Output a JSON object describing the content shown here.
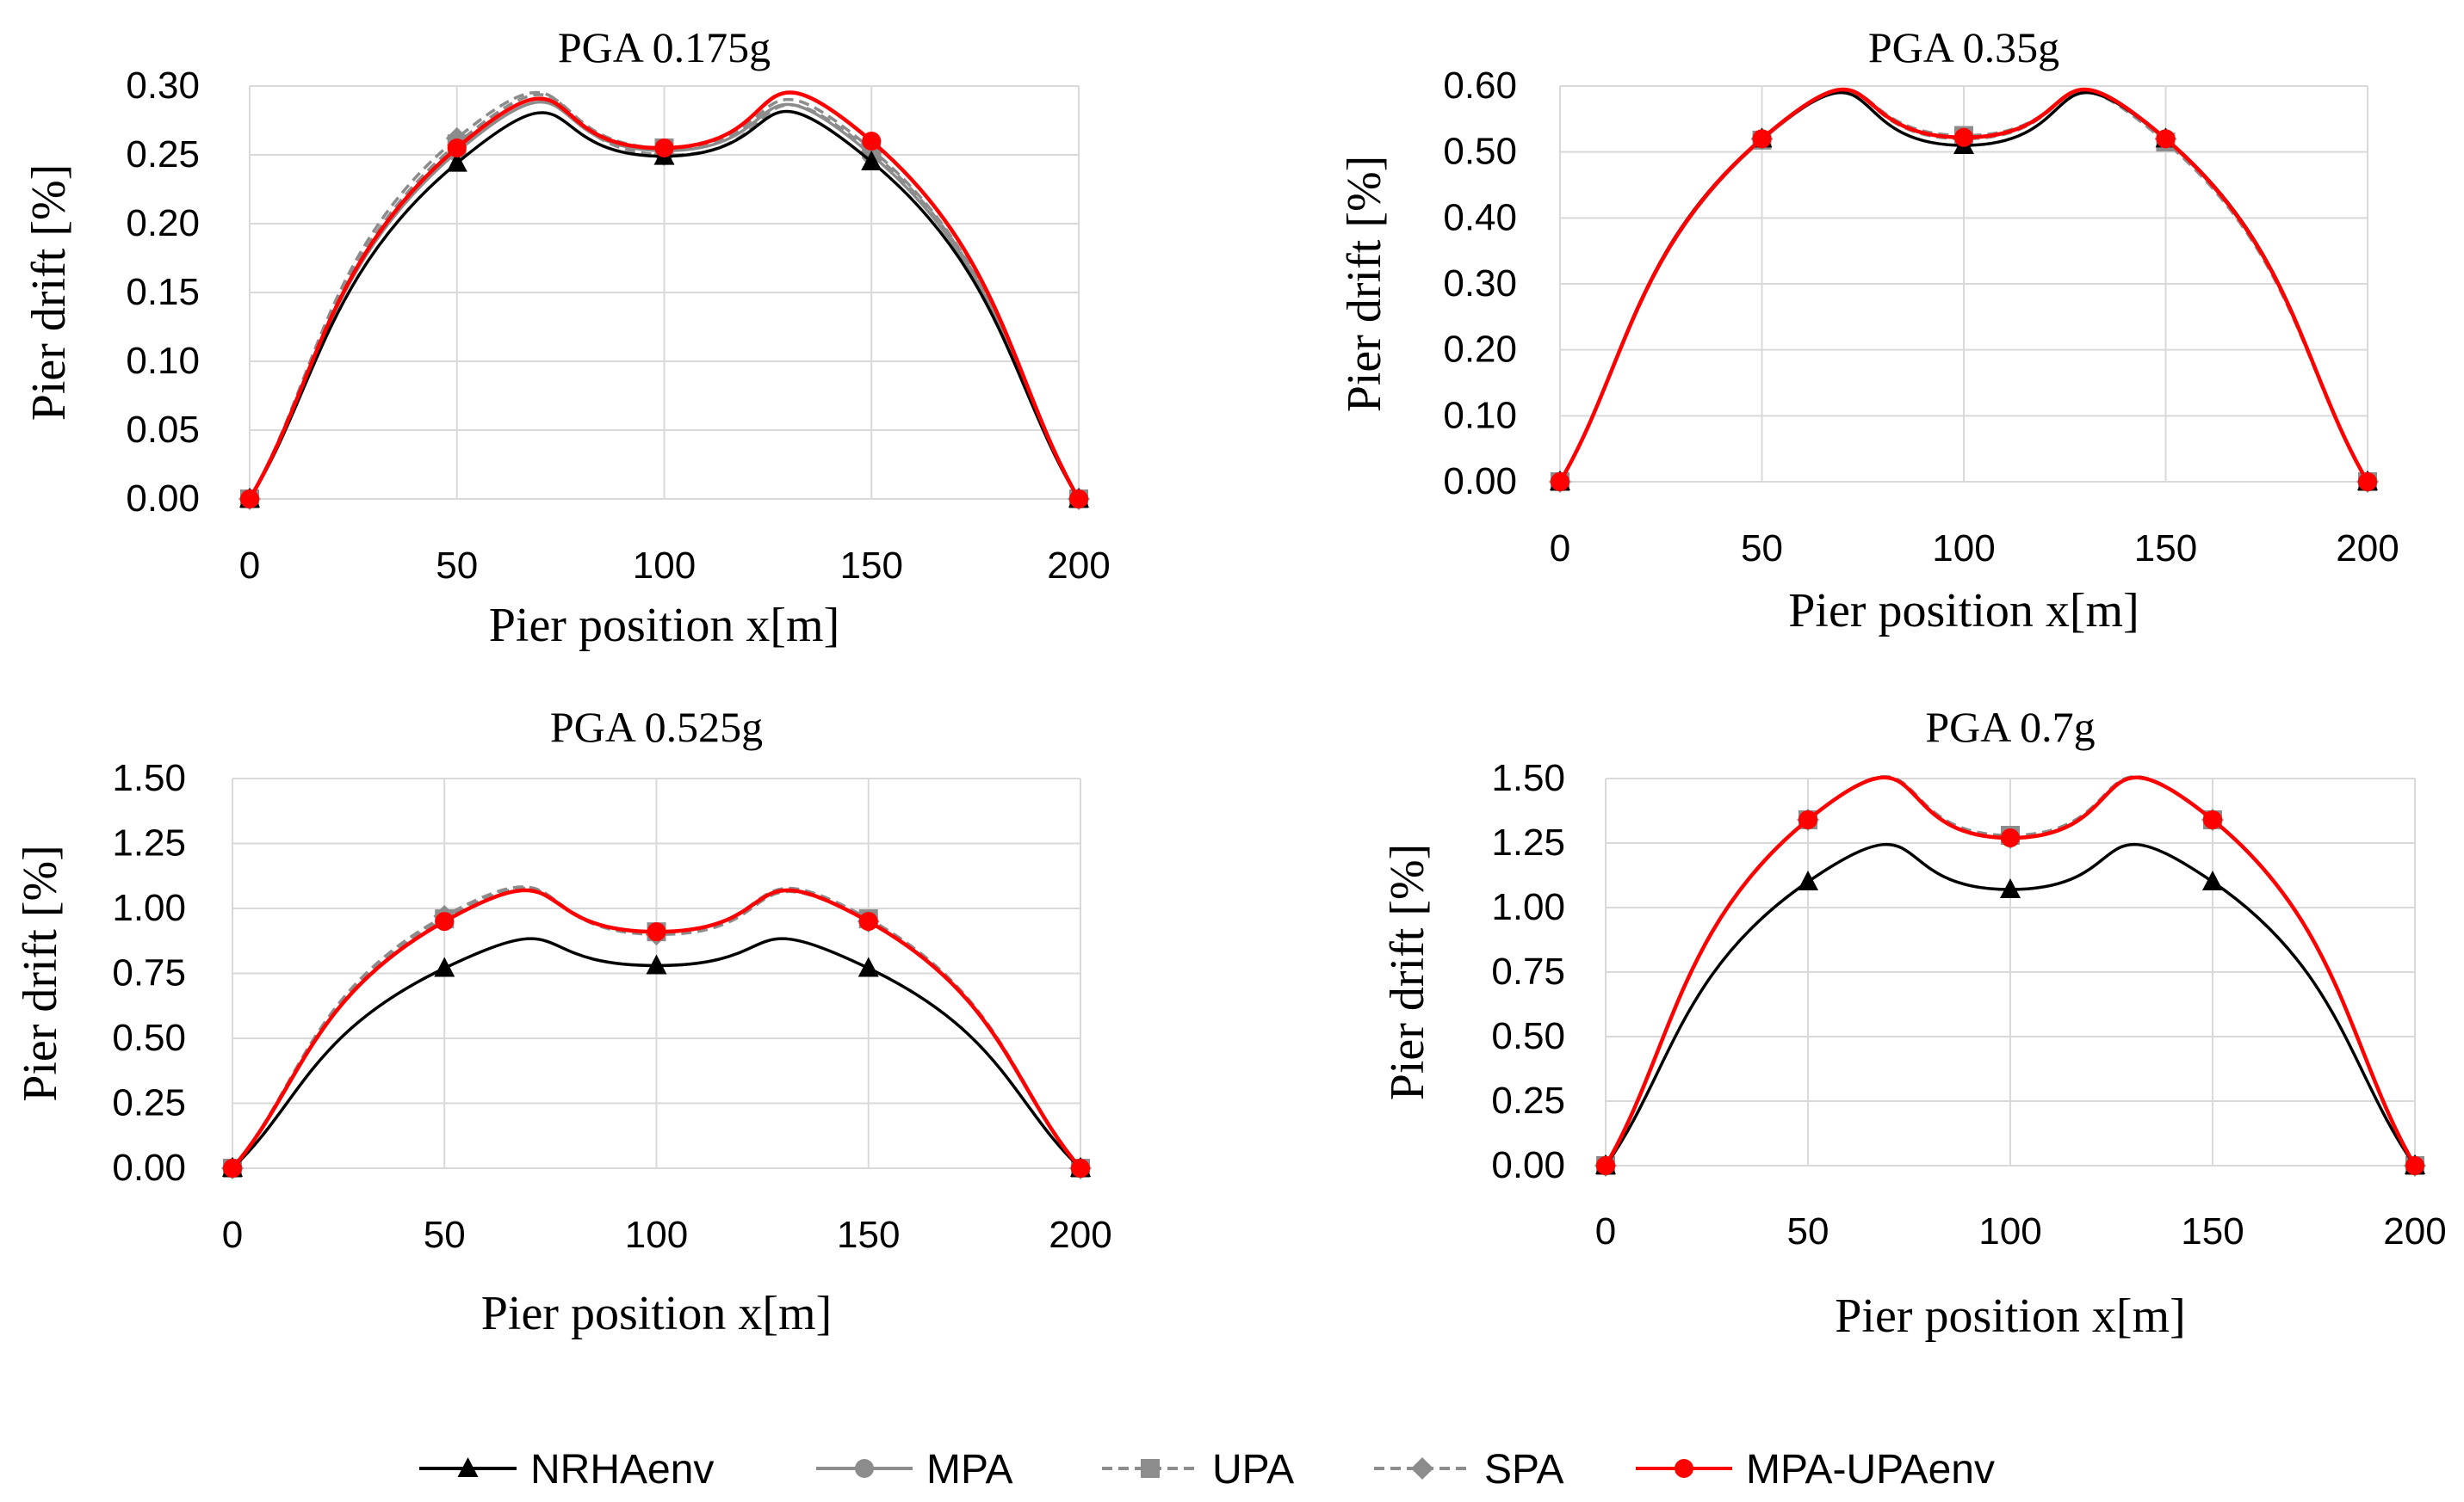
{
  "figure": {
    "type": "multi-panel line chart"
  },
  "legend": {
    "items": [
      {
        "name": "NRHAenv",
        "color": "#000000",
        "marker": "triangle",
        "dash": "solid"
      },
      {
        "name": "MPA",
        "color": "#8c8c8c",
        "marker": "circle",
        "dash": "solid"
      },
      {
        "name": "UPA",
        "color": "#8c8c8c",
        "marker": "square",
        "dash": "dashed"
      },
      {
        "name": "SPA",
        "color": "#8c8c8c",
        "marker": "diamond",
        "dash": "dashed"
      },
      {
        "name": "MPA-UPAenv",
        "color": "#ff0000",
        "marker": "circle",
        "dash": "solid"
      }
    ]
  },
  "chart_data": [
    {
      "type": "line",
      "title": "PGA 0.175g",
      "xlabel": "Pier position x[m]",
      "ylabel": "Pier drift  [%]",
      "x": [
        0,
        50,
        100,
        150,
        200
      ],
      "xlim": [
        0,
        200
      ],
      "ylim": [
        0,
        0.3
      ],
      "xticks": [
        "0",
        "50",
        "100",
        "150",
        "200"
      ],
      "yticks": [
        "0.00",
        "0.05",
        "0.10",
        "0.15",
        "0.20",
        "0.25",
        "0.30"
      ],
      "grid": true,
      "series": [
        {
          "name": "NRHAenv",
          "values": [
            0.0,
            0.244,
            0.249,
            0.245,
            0.0
          ]
        },
        {
          "name": "MPA",
          "values": [
            0.0,
            0.252,
            0.253,
            0.25,
            0.0
          ]
        },
        {
          "name": "UPA",
          "values": [
            0.0,
            0.258,
            0.255,
            0.254,
            0.0
          ]
        },
        {
          "name": "SPA",
          "values": [
            0.0,
            0.262,
            0.25,
            0.252,
            0.0
          ]
        },
        {
          "name": "MPA-UPAenv",
          "values": [
            0.0,
            0.255,
            0.255,
            0.26,
            0.0
          ]
        }
      ]
    },
    {
      "type": "line",
      "title": "PGA 0.35g",
      "xlabel": "Pier position x[m]",
      "ylabel": "Pier drift  [%]",
      "x": [
        0,
        50,
        100,
        150,
        200
      ],
      "xlim": [
        0,
        200
      ],
      "ylim": [
        0,
        0.6
      ],
      "xticks": [
        "0",
        "50",
        "100",
        "150",
        "200"
      ],
      "yticks": [
        "0.00",
        "0.10",
        "0.20",
        "0.30",
        "0.40",
        "0.50",
        "0.60"
      ],
      "grid": true,
      "series": [
        {
          "name": "NRHAenv",
          "values": [
            0.0,
            0.52,
            0.51,
            0.52,
            0.0
          ]
        },
        {
          "name": "MPA",
          "values": [
            0.0,
            0.518,
            0.522,
            0.518,
            0.0
          ]
        },
        {
          "name": "UPA",
          "values": [
            0.0,
            0.518,
            0.525,
            0.515,
            0.0
          ]
        },
        {
          "name": "SPA",
          "values": [
            0.0,
            0.52,
            0.52,
            0.52,
            0.0
          ]
        },
        {
          "name": "MPA-UPAenv",
          "values": [
            0.0,
            0.52,
            0.522,
            0.52,
            0.0
          ]
        }
      ]
    },
    {
      "type": "line",
      "title": "PGA 0.525g",
      "xlabel": "Pier position x[m]",
      "ylabel": "Pier drift  [%]",
      "x": [
        0,
        50,
        100,
        150,
        200
      ],
      "xlim": [
        0,
        200
      ],
      "ylim": [
        0,
        1.5
      ],
      "xticks": [
        "0",
        "50",
        "100",
        "150",
        "200"
      ],
      "yticks": [
        "0.00",
        "0.25",
        "0.50",
        "0.75",
        "1.00",
        "1.25",
        "1.50"
      ],
      "grid": true,
      "series": [
        {
          "name": "NRHAenv",
          "values": [
            0.0,
            0.77,
            0.78,
            0.77,
            0.0
          ]
        },
        {
          "name": "MPA",
          "values": [
            0.0,
            0.95,
            0.91,
            0.95,
            0.0
          ]
        },
        {
          "name": "UPA",
          "values": [
            0.0,
            0.96,
            0.91,
            0.96,
            0.0
          ]
        },
        {
          "name": "SPA",
          "values": [
            0.0,
            0.97,
            0.9,
            0.95,
            0.0
          ]
        },
        {
          "name": "MPA-UPAenv",
          "values": [
            0.0,
            0.95,
            0.91,
            0.95,
            0.0
          ]
        }
      ]
    },
    {
      "type": "line",
      "title": "PGA 0.7g",
      "xlabel": "Pier position x[m]",
      "ylabel": "Pier drift  [%]",
      "x": [
        0,
        50,
        100,
        150,
        200
      ],
      "xlim": [
        0,
        200
      ],
      "ylim": [
        0,
        1.5
      ],
      "xticks": [
        "0",
        "50",
        "100",
        "150",
        "200"
      ],
      "yticks": [
        "0.00",
        "0.25",
        "0.50",
        "0.75",
        "1.00",
        "1.25",
        "1.50"
      ],
      "grid": true,
      "series": [
        {
          "name": "NRHAenv",
          "values": [
            0.0,
            1.1,
            1.07,
            1.1,
            0.0
          ]
        },
        {
          "name": "MPA",
          "values": [
            0.0,
            1.34,
            1.27,
            1.34,
            0.0
          ]
        },
        {
          "name": "UPA",
          "values": [
            0.0,
            1.34,
            1.28,
            1.34,
            0.0
          ]
        },
        {
          "name": "SPA",
          "values": [
            0.0,
            1.34,
            1.27,
            1.34,
            0.0
          ]
        },
        {
          "name": "MPA-UPAenv",
          "values": [
            0.0,
            1.34,
            1.27,
            1.34,
            0.0
          ]
        }
      ]
    }
  ]
}
